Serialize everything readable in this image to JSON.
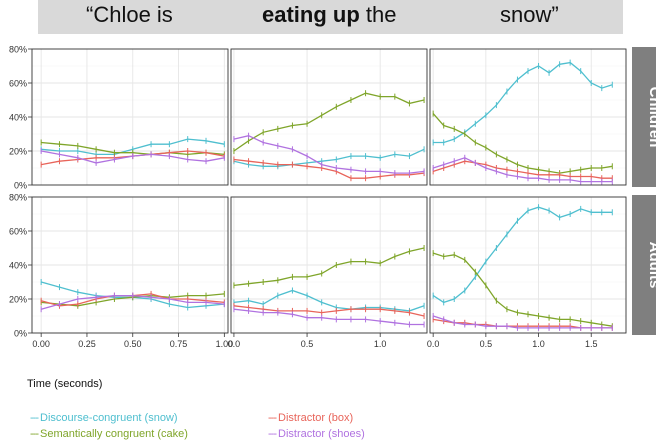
{
  "banner": {
    "part1": "“Chloe is",
    "part2_bold": "eating up",
    "part2_rest": " the",
    "part3": "snow”"
  },
  "x_axis_title": "Time (seconds)",
  "colors": {
    "discourse": "#4fbfcf",
    "semantic": "#7fa52a",
    "box": "#e8645a",
    "shoes": "#b072e0",
    "strip": "#7f7f7f",
    "panel_border": "#333333",
    "grid": "#e6e6e6"
  },
  "legend": [
    {
      "key": "discourse",
      "dash": "---",
      "label": "Discourse-congruent (snow)"
    },
    {
      "key": "semantic",
      "dash": "---",
      "label": "Semantically congruent (cake)"
    },
    {
      "key": "box",
      "dash": "---",
      "label": "Distractor (box)"
    },
    {
      "key": "shoes",
      "dash": "---",
      "label": "Distractor (shoes)"
    }
  ],
  "chart_data": {
    "type": "line",
    "facet_rows": [
      "Children",
      "Adults"
    ],
    "y_ticks": [
      "0%",
      "20%",
      "40%",
      "60%",
      "80%"
    ],
    "ylim": [
      0,
      80
    ],
    "error_bars": true,
    "columns": [
      {
        "xlim": [
          -0.05,
          1.02
        ],
        "ticks": [
          0,
          0.25,
          0.5,
          0.75,
          1.0
        ],
        "tick_labels": [
          "0.00",
          "0.25",
          "0.50",
          "0.75",
          "1.00"
        ]
      },
      {
        "xlim": [
          -0.02,
          1.32
        ],
        "ticks": [
          0,
          0.5,
          1.0
        ],
        "tick_labels": [
          "0.0",
          "0.5",
          "1.0"
        ]
      },
      {
        "xlim": [
          -0.03,
          1.83
        ],
        "ticks": [
          0,
          0.5,
          1.0,
          1.5
        ],
        "tick_labels": [
          "0.0",
          "0.5",
          "1.0",
          "1.5"
        ]
      }
    ],
    "panels": [
      {
        "row": "Children",
        "col": 0,
        "series": [
          {
            "key": "discourse",
            "x": [
              0,
              0.1,
              0.2,
              0.3,
              0.4,
              0.5,
              0.6,
              0.7,
              0.8,
              0.9,
              1.0
            ],
            "y": [
              21,
              20,
              20,
              18,
              18,
              21,
              24,
              24,
              27,
              26,
              24
            ]
          },
          {
            "key": "semantic",
            "x": [
              0,
              0.1,
              0.2,
              0.3,
              0.4,
              0.5,
              0.6,
              0.7,
              0.8,
              0.9,
              1.0
            ],
            "y": [
              25,
              24,
              23,
              21,
              19,
              19,
              18,
              19,
              18,
              19,
              18
            ]
          },
          {
            "key": "box",
            "x": [
              0,
              0.1,
              0.2,
              0.3,
              0.4,
              0.5,
              0.6,
              0.7,
              0.8,
              0.9,
              1.0
            ],
            "y": [
              12,
              14,
              15,
              16,
              16,
              17,
              18,
              19,
              20,
              19,
              17
            ]
          },
          {
            "key": "shoes",
            "x": [
              0,
              0.1,
              0.2,
              0.3,
              0.4,
              0.5,
              0.6,
              0.7,
              0.8,
              0.9,
              1.0
            ],
            "y": [
              20,
              18,
              16,
              13,
              15,
              17,
              18,
              17,
              15,
              14,
              16
            ]
          }
        ]
      },
      {
        "row": "Children",
        "col": 1,
        "series": [
          {
            "key": "discourse",
            "x": [
              0,
              0.1,
              0.2,
              0.3,
              0.4,
              0.5,
              0.6,
              0.7,
              0.8,
              0.9,
              1.0,
              1.1,
              1.2,
              1.3
            ],
            "y": [
              14,
              12,
              11,
              11,
              12,
              13,
              14,
              15,
              17,
              17,
              16,
              18,
              17,
              21
            ]
          },
          {
            "key": "semantic",
            "x": [
              0,
              0.1,
              0.2,
              0.3,
              0.4,
              0.5,
              0.6,
              0.7,
              0.8,
              0.9,
              1.0,
              1.1,
              1.2,
              1.3
            ],
            "y": [
              20,
              26,
              31,
              33,
              35,
              36,
              41,
              46,
              50,
              54,
              52,
              52,
              48,
              50
            ]
          },
          {
            "key": "box",
            "x": [
              0,
              0.1,
              0.2,
              0.3,
              0.4,
              0.5,
              0.6,
              0.7,
              0.8,
              0.9,
              1.0,
              1.1,
              1.2,
              1.3
            ],
            "y": [
              15,
              14,
              13,
              12,
              12,
              11,
              10,
              8,
              4,
              4,
              5,
              6,
              6,
              7
            ]
          },
          {
            "key": "shoes",
            "x": [
              0,
              0.1,
              0.2,
              0.3,
              0.4,
              0.5,
              0.6,
              0.7,
              0.8,
              0.9,
              1.0,
              1.1,
              1.2,
              1.3
            ],
            "y": [
              27,
              29,
              25,
              23,
              21,
              17,
              12,
              10,
              9,
              8,
              8,
              7,
              7,
              8
            ]
          }
        ]
      },
      {
        "row": "Children",
        "col": 2,
        "series": [
          {
            "key": "discourse",
            "x": [
              0,
              0.1,
              0.2,
              0.3,
              0.4,
              0.5,
              0.6,
              0.7,
              0.8,
              0.9,
              1.0,
              1.1,
              1.2,
              1.3,
              1.4,
              1.5,
              1.6,
              1.7
            ],
            "y": [
              25,
              25,
              27,
              31,
              36,
              41,
              47,
              55,
              62,
              67,
              70,
              66,
              71,
              72,
              67,
              60,
              57,
              59
            ]
          },
          {
            "key": "semantic",
            "x": [
              0,
              0.1,
              0.2,
              0.3,
              0.4,
              0.5,
              0.6,
              0.7,
              0.8,
              0.9,
              1.0,
              1.1,
              1.2,
              1.3,
              1.4,
              1.5,
              1.6,
              1.7
            ],
            "y": [
              42,
              35,
              33,
              30,
              25,
              22,
              18,
              15,
              12,
              10,
              9,
              8,
              7,
              8,
              9,
              10,
              10,
              11
            ]
          },
          {
            "key": "box",
            "x": [
              0,
              0.1,
              0.2,
              0.3,
              0.4,
              0.5,
              0.6,
              0.7,
              0.8,
              0.9,
              1.0,
              1.1,
              1.2,
              1.3,
              1.4,
              1.5,
              1.6,
              1.7
            ],
            "y": [
              8,
              10,
              12,
              14,
              13,
              12,
              10,
              9,
              8,
              7,
              6,
              6,
              6,
              5,
              5,
              5,
              4,
              4
            ]
          },
          {
            "key": "shoes",
            "x": [
              0,
              0.1,
              0.2,
              0.3,
              0.4,
              0.5,
              0.6,
              0.7,
              0.8,
              0.9,
              1.0,
              1.1,
              1.2,
              1.3,
              1.4,
              1.5,
              1.6,
              1.7
            ],
            "y": [
              10,
              12,
              14,
              16,
              13,
              10,
              8,
              6,
              5,
              4,
              4,
              3,
              3,
              3,
              2,
              2,
              2,
              2
            ]
          }
        ]
      },
      {
        "row": "Adults",
        "col": 0,
        "series": [
          {
            "key": "discourse",
            "x": [
              0,
              0.1,
              0.2,
              0.3,
              0.4,
              0.5,
              0.6,
              0.7,
              0.8,
              0.9,
              1.0
            ],
            "y": [
              30,
              27,
              24,
              22,
              21,
              21,
              20,
              17,
              15,
              16,
              17
            ]
          },
          {
            "key": "semantic",
            "x": [
              0,
              0.1,
              0.2,
              0.3,
              0.4,
              0.5,
              0.6,
              0.7,
              0.8,
              0.9,
              1.0
            ],
            "y": [
              18,
              17,
              16,
              18,
              20,
              21,
              22,
              21,
              22,
              22,
              23
            ]
          },
          {
            "key": "box",
            "x": [
              0,
              0.1,
              0.2,
              0.3,
              0.4,
              0.5,
              0.6,
              0.7,
              0.8,
              0.9,
              1.0
            ],
            "y": [
              19,
              16,
              17,
              20,
              22,
              22,
              23,
              20,
              20,
              19,
              18
            ]
          },
          {
            "key": "shoes",
            "x": [
              0,
              0.1,
              0.2,
              0.3,
              0.4,
              0.5,
              0.6,
              0.7,
              0.8,
              0.9,
              1.0
            ],
            "y": [
              14,
              17,
              20,
              21,
              22,
              22,
              21,
              20,
              18,
              18,
              17
            ]
          }
        ]
      },
      {
        "row": "Adults",
        "col": 1,
        "series": [
          {
            "key": "discourse",
            "x": [
              0,
              0.1,
              0.2,
              0.3,
              0.4,
              0.5,
              0.6,
              0.7,
              0.8,
              0.9,
              1.0,
              1.1,
              1.2,
              1.3
            ],
            "y": [
              18,
              19,
              17,
              22,
              25,
              22,
              18,
              15,
              14,
              15,
              15,
              14,
              13,
              16
            ]
          },
          {
            "key": "semantic",
            "x": [
              0,
              0.1,
              0.2,
              0.3,
              0.4,
              0.5,
              0.6,
              0.7,
              0.8,
              0.9,
              1.0,
              1.1,
              1.2,
              1.3
            ],
            "y": [
              28,
              29,
              30,
              31,
              33,
              33,
              35,
              40,
              42,
              42,
              41,
              45,
              48,
              50
            ]
          },
          {
            "key": "box",
            "x": [
              0,
              0.1,
              0.2,
              0.3,
              0.4,
              0.5,
              0.6,
              0.7,
              0.8,
              0.9,
              1.0,
              1.1,
              1.2,
              1.3
            ],
            "y": [
              16,
              15,
              14,
              13,
              13,
              13,
              12,
              13,
              14,
              14,
              14,
              13,
              12,
              10
            ]
          },
          {
            "key": "shoes",
            "x": [
              0,
              0.1,
              0.2,
              0.3,
              0.4,
              0.5,
              0.6,
              0.7,
              0.8,
              0.9,
              1.0,
              1.1,
              1.2,
              1.3
            ],
            "y": [
              14,
              13,
              12,
              12,
              11,
              9,
              9,
              8,
              8,
              8,
              7,
              6,
              5,
              5
            ]
          }
        ]
      },
      {
        "row": "Adults",
        "col": 2,
        "series": [
          {
            "key": "discourse",
            "x": [
              0,
              0.1,
              0.2,
              0.3,
              0.4,
              0.5,
              0.6,
              0.7,
              0.8,
              0.9,
              1.0,
              1.1,
              1.2,
              1.3,
              1.4,
              1.5,
              1.6,
              1.7
            ],
            "y": [
              22,
              18,
              20,
              25,
              33,
              42,
              50,
              58,
              66,
              72,
              74,
              72,
              68,
              70,
              73,
              71,
              71,
              71
            ]
          },
          {
            "key": "semantic",
            "x": [
              0,
              0.1,
              0.2,
              0.3,
              0.4,
              0.5,
              0.6,
              0.7,
              0.8,
              0.9,
              1.0,
              1.1,
              1.2,
              1.3,
              1.4,
              1.5,
              1.6,
              1.7
            ],
            "y": [
              47,
              45,
              46,
              43,
              36,
              28,
              19,
              14,
              12,
              11,
              10,
              9,
              8,
              8,
              7,
              6,
              5,
              4
            ]
          },
          {
            "key": "box",
            "x": [
              0,
              0.1,
              0.2,
              0.3,
              0.4,
              0.5,
              0.6,
              0.7,
              0.8,
              0.9,
              1.0,
              1.1,
              1.2,
              1.3,
              1.4,
              1.5,
              1.6,
              1.7
            ],
            "y": [
              8,
              7,
              6,
              6,
              5,
              5,
              4,
              4,
              4,
              4,
              4,
              4,
              4,
              4,
              3,
              3,
              3,
              3
            ]
          },
          {
            "key": "shoes",
            "x": [
              0,
              0.1,
              0.2,
              0.3,
              0.4,
              0.5,
              0.6,
              0.7,
              0.8,
              0.9,
              1.0,
              1.1,
              1.2,
              1.3,
              1.4,
              1.5,
              1.6,
              1.7
            ],
            "y": [
              10,
              8,
              6,
              5,
              5,
              4,
              4,
              4,
              3,
              3,
              3,
              3,
              3,
              3,
              3,
              3,
              3,
              3
            ]
          }
        ]
      }
    ]
  }
}
